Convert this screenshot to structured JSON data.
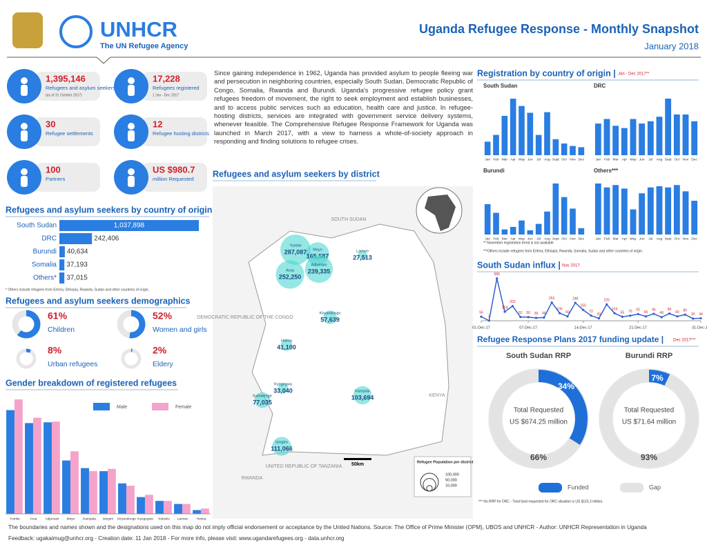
{
  "header": {
    "logo": "UNHCR",
    "tagline": "The UN Refugee Agency",
    "title": "Uganda Refugee Response - Monthly Snapshot",
    "date": "January 2018"
  },
  "key_figures": [
    {
      "value": "1,395,146",
      "label": "Refugees and asylum seekers",
      "note": "(as of 31 October 2017)"
    },
    {
      "value": "17,228",
      "label": "Refugees registered",
      "note": "1 Jan - Dec 2017"
    },
    {
      "value": "30",
      "label": "Refugee settlements"
    },
    {
      "value": "12",
      "label": "Refugee hosting districts"
    },
    {
      "value": "100",
      "label": "Partners"
    },
    {
      "value": "US $980.7",
      "label": "million Requested"
    }
  ],
  "intro": "Since gaining independence in 1962, Uganda has provided asylum to people fleeing war and persecution in neighboring countries, especially South Sudan, Democratic Republic of Congo, Somalia, Rwanda and Burundi. Uganda's progressive refugee policy grant refugees freedom of movement, the right to seek employment and establish businesses, and to access public services such as education, health care and justice. In refugee-hosting districts, services are integrated with government service delivery systems, whenever feasible. The Comprehensive Refugee Response Framework for Uganda was launched in March 2017, with a view to harness a whole-of-society approach in responding and finding solutions to refugee crises.",
  "origin": {
    "title": "Refugees and asylum seekers by country of origin",
    "categories": [
      "South Sudan",
      "DRC",
      "Burundi",
      "Somalia",
      "Others*"
    ],
    "values": [
      1037898,
      242406,
      40634,
      37193,
      37015
    ],
    "value_labels": [
      "1,037,898",
      "242,406",
      "40,634",
      "37,193",
      "37,015"
    ],
    "note": "* Others include refugees from Eritrea, Ethiopia, Rwanda, Sudan and other countries of origin."
  },
  "demographics": {
    "title": "Refugees and asylum seekers demographics",
    "categories": [
      "Children",
      "Women and girls",
      "Urban refugees",
      "Eldery"
    ],
    "values": [
      61,
      52,
      8,
      2
    ],
    "value_labels": [
      "61%",
      "52%",
      "8%",
      "2%"
    ]
  },
  "gender": {
    "title": "Gender breakdown of registered refugees",
    "categories": [
      "Yumbe",
      "Arua",
      "Adjumani",
      "Moyo",
      "Kampala",
      "Isingiro",
      "Kiryandongo",
      "Kyegegwa",
      "Koboko",
      "Lamwo",
      "Hoima"
    ],
    "ylim": [
      0,
      160000
    ],
    "series": [
      {
        "name": "Male",
        "color": "#2a7de1",
        "values": [
          136000,
          119000,
          120000,
          70000,
          60000,
          56000,
          40000,
          22000,
          17000,
          13000,
          5000
        ]
      },
      {
        "name": "Female",
        "color": "#f4a3cb",
        "values": [
          150000,
          126000,
          121000,
          82000,
          56000,
          59000,
          37000,
          25000,
          17000,
          13000,
          7000
        ]
      }
    ]
  },
  "map": {
    "title": "Refugees and asylum seekers by district",
    "districts": {
      "names": [
        "Yumbe",
        "Moyo",
        "Adjumani",
        "Arua",
        "Lamwo",
        "Kiryandongo",
        "Hoima",
        "Kyegegwa",
        "Kamwenge",
        "Kampala",
        "Isingiro"
      ],
      "values": [
        287087,
        165587,
        239335,
        252250,
        27513,
        57639,
        41100,
        33040,
        77035,
        103694,
        111066
      ],
      "value_labels": [
        "287,087",
        "165,587",
        "239,335",
        "252,250",
        "27,513",
        "57,639",
        "41,100",
        "33,040",
        "77,035",
        "103,694",
        "111,066"
      ]
    },
    "countries": [
      "SOUTH SUDAN",
      "DEMOCRATIC REPUBLIC OF THE CONGO",
      "KENYA",
      "UNITED REPUBLIC OF TANZANIA",
      "RWANDA"
    ],
    "scale": "50km",
    "legend_title": "Refugee Population per district",
    "legend_sizes": [
      100000,
      50000,
      10000
    ],
    "legend_labels": [
      "100,000",
      "50,000",
      "10,000"
    ]
  },
  "registration": {
    "title": "Registration by country of origin |",
    "period": "Jan - Dec 2017**",
    "months": [
      "Jan",
      "Feb",
      "Mar",
      "Apr",
      "May",
      "Jun",
      "Jul",
      "Aug",
      "Sept",
      "Oct",
      "Nov",
      "Dec"
    ],
    "panels": [
      {
        "name": "South Sudan",
        "values": [
          22000,
          33000,
          64000,
          92000,
          80000,
          69000,
          33000,
          70000,
          26000,
          19000,
          15000,
          13000
        ]
      },
      {
        "name": "DRC",
        "values": [
          1400,
          1600,
          1300,
          1200,
          1600,
          1400,
          1500,
          1700,
          2500,
          1800,
          1800,
          1500
        ]
      },
      {
        "name": "Burundi",
        "values": [
          714,
          510,
          120,
          180,
          330,
          100,
          250,
          540,
          1200,
          880,
          610,
          150
        ]
      },
      {
        "name": "Others***",
        "values": [
          1300,
          1200,
          1260,
          1170,
          640,
          1050,
          1200,
          1230,
          1200,
          1260,
          1100,
          860
        ]
      }
    ],
    "notes": [
      "** November registration trend is not available",
      "***Others include refugees from Eritrea, Ethiopia, Rwanda, Somalia, Sudan and other countries of origin."
    ]
  },
  "influx": {
    "title": "South Sudan influx |",
    "period": "Nov 2017",
    "values": [
      56,
      2,
      586,
      124,
      203,
      52,
      50,
      39,
      44,
      252,
      105,
      60,
      248,
      150,
      72,
      33,
      225,
      104,
      55,
      70,
      92,
      60,
      96,
      49,
      99,
      60,
      85,
      30,
      34
    ],
    "xlim": [
      0,
      28
    ],
    "ylim": [
      0,
      620
    ],
    "xticks": [
      {
        "value": 0,
        "label": "01-Dec-17"
      },
      {
        "value": 6,
        "label": "07-Dec-17"
      },
      {
        "value": 13,
        "label": "14-Dec-17"
      },
      {
        "value": 20,
        "label": "21-Dec-17"
      },
      {
        "value": 28,
        "label": "31-Dec-17"
      }
    ]
  },
  "funding": {
    "title": "Refugee Response Plans 2017 funding update |",
    "period": "Dec 2017***",
    "plans": [
      {
        "name": "South Sudan RRP",
        "values": [
          34,
          66
        ],
        "value_labels": [
          "34%",
          "66%"
        ],
        "total_label": "Total Requested",
        "total": "US $674.25 million"
      },
      {
        "name": "Burundi RRP",
        "values": [
          7,
          93
        ],
        "value_labels": [
          "7%",
          "93%"
        ],
        "total_label": "Total Requested",
        "total": "US $71.64 million"
      }
    ],
    "legend": [
      "Funded",
      "Gap"
    ],
    "colors": [
      "#1f6fd8",
      "#e3e3e3"
    ],
    "note": "*** No RRP for DRC - Total fund requested for DRC situation is US $115.3 million."
  },
  "footer": [
    "The boundaries and names shown and the designations used on this map do not imply official endorsement or acceptance by the United Nations. Source: The Office of Prime Minister (OPM), UBOS and UNHCR - Author: UNHCR Representation in Uganda",
    "Feedback: ugakaimug@unhcr.org - Creation date: 11 Jan 2018 - For more info, please visit: www.ugandarefugees.org - data.unhcr.org"
  ]
}
